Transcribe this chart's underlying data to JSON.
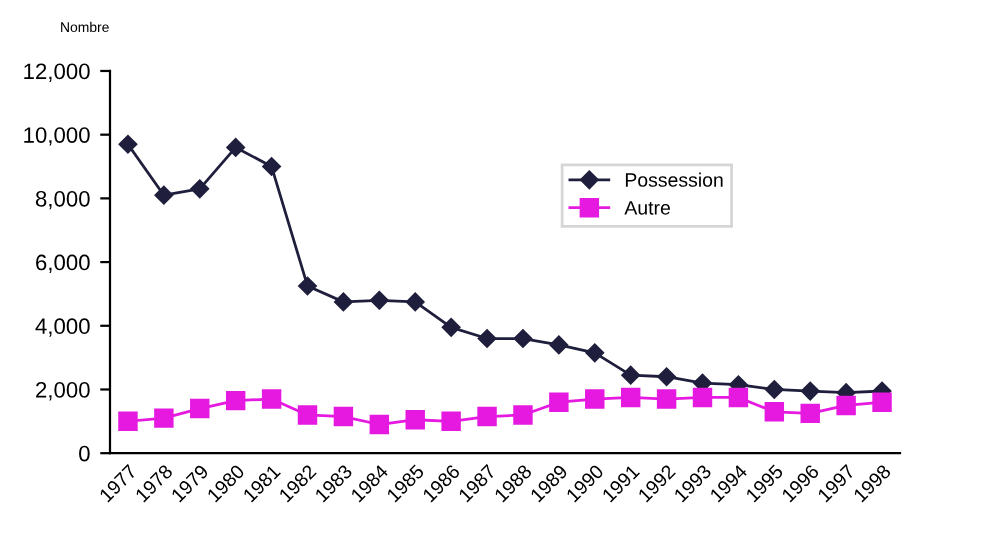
{
  "chart_data": {
    "type": "line",
    "ylabel": "Nombre",
    "categories": [
      "1977",
      "1978",
      "1979",
      "1980",
      "1981",
      "1982",
      "1983",
      "1984",
      "1985",
      "1986",
      "1987",
      "1988",
      "1989",
      "1990",
      "1991",
      "1992",
      "1993",
      "1994",
      "1995",
      "1996",
      "1997",
      "1998"
    ],
    "series": [
      {
        "name": "Possession",
        "color": "#1f1f3d",
        "marker": "diamond",
        "values": [
          9700,
          8100,
          8300,
          9600,
          9000,
          5250,
          4750,
          4800,
          4750,
          3950,
          3600,
          3600,
          3400,
          3150,
          2450,
          2400,
          2200,
          2150,
          2000,
          1950,
          1900,
          1950
        ]
      },
      {
        "name": "Autre",
        "color": "#e619e0",
        "marker": "square",
        "values": [
          1000,
          1100,
          1400,
          1650,
          1700,
          1200,
          1150,
          900,
          1050,
          1000,
          1150,
          1200,
          1600,
          1700,
          1750,
          1700,
          1750,
          1750,
          1300,
          1250,
          1500,
          1600
        ]
      }
    ],
    "ylim": [
      0,
      12000
    ],
    "yticks": [
      {
        "value": 0,
        "label": "0"
      },
      {
        "value": 2000,
        "label": "2,000"
      },
      {
        "value": 4000,
        "label": "4,000"
      },
      {
        "value": 6000,
        "label": "6,000"
      },
      {
        "value": 8000,
        "label": "8,000"
      },
      {
        "value": 10000,
        "label": "10,000"
      },
      {
        "value": 12000,
        "label": "12,000"
      }
    ],
    "grid": false,
    "legend": "top right",
    "line_style": "solid"
  }
}
